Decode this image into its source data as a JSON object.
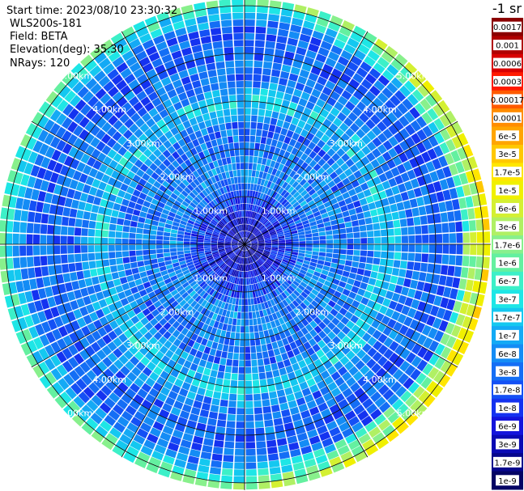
{
  "header": {
    "start_time": "Start time: 2023/08/10 23:30:32",
    "instrument": "WLS200s-181",
    "field": "Field: BETA",
    "elevation": "Elevation(deg): 35.30",
    "nrays": "NRays: 120"
  },
  "colorbar": {
    "title": "-1 sr",
    "labels": [
      "0.0017",
      "0.001",
      "0.0006",
      "0.0003",
      "0.00017",
      "0.0001",
      "6e-5",
      "3e-5",
      "1.7e-5",
      "1e-5",
      "6e-6",
      "3e-6",
      "1.7e-6",
      "1e-6",
      "6e-7",
      "3e-7",
      "1.7e-7",
      "1e-7",
      "6e-8",
      "3e-8",
      "1.7e-8",
      "1e-8",
      "6e-9",
      "3e-9",
      "1.7e-9",
      "1e-9"
    ],
    "colors": [
      "#8b0000",
      "#b00000",
      "#d80000",
      "#ff1a00",
      "#ff5a00",
      "#ff8c00",
      "#ffa500",
      "#ffc800",
      "#ffe600",
      "#f0f000",
      "#d4f032",
      "#b0f064",
      "#88f08c",
      "#64f0a0",
      "#3cf0c8",
      "#1ee6e6",
      "#14c8f0",
      "#14aaf5",
      "#148cf5",
      "#146ef5",
      "#1450f5",
      "#1432f0",
      "#1414dc",
      "#0a0ab4",
      "#06068c",
      "#040464"
    ]
  },
  "chart_data": {
    "type": "heatmap",
    "projection": "polar (PPI scan)",
    "field": "BETA",
    "nrays": 120,
    "azimuth_deg_range": [
      0,
      360
    ],
    "max_range_km": 5.0,
    "range_rings_km": [
      1.0,
      2.0,
      3.0,
      4.0,
      5.0
    ],
    "ring_labels": [
      "1.00km",
      "2.00km",
      "3.00km",
      "4.00km",
      "5.00km"
    ],
    "radial_spokes_deg": [
      0,
      30,
      60,
      90,
      120,
      150,
      180,
      210,
      240,
      270,
      300,
      330
    ],
    "colorscale": "log",
    "value_range": [
      1e-09,
      0.0017
    ],
    "typical_log10_beta_by_range": [
      {
        "range_km": 0.5,
        "log10_beta": -8.3
      },
      {
        "range_km": 1.5,
        "log10_beta": -7.2
      },
      {
        "range_km": 2.5,
        "log10_beta": -7.5
      },
      {
        "range_km": 3.0,
        "log10_beta": -6.6
      },
      {
        "range_km": 3.5,
        "log10_beta": -7.4
      },
      {
        "range_km": 4.5,
        "log10_beta": -7.6
      },
      {
        "range_km": 5.2,
        "log10_beta": -5.8
      }
    ]
  }
}
